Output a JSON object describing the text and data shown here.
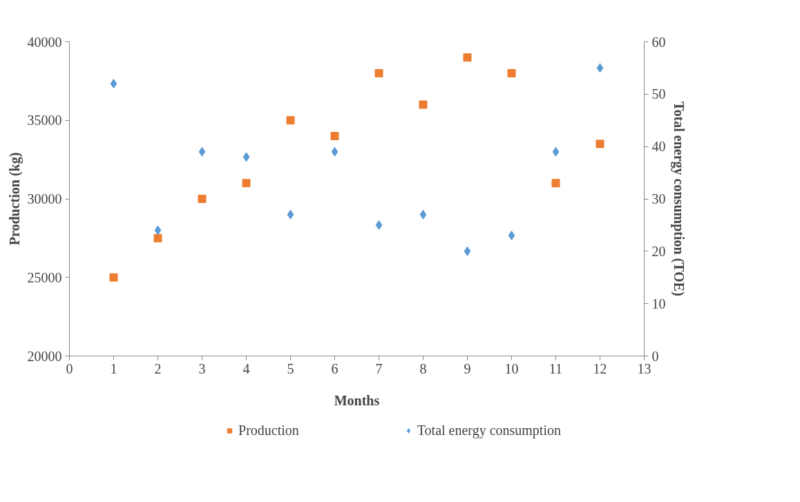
{
  "chart_data": {
    "type": "scatter",
    "xlabel": "Months",
    "ylabel": "Production (kg)",
    "y2label": "Total energy consumption (TOE)",
    "x": [
      1,
      2,
      3,
      4,
      5,
      6,
      7,
      8,
      9,
      10,
      11,
      12
    ],
    "xlim": [
      0,
      13
    ],
    "xticks": [
      0,
      1,
      2,
      3,
      4,
      5,
      6,
      7,
      8,
      9,
      10,
      11,
      12,
      13
    ],
    "ylim": [
      20000,
      40000
    ],
    "yticks": [
      20000,
      25000,
      30000,
      35000,
      40000
    ],
    "y2lim": [
      0,
      60
    ],
    "y2ticks": [
      0,
      10,
      20,
      30,
      40,
      50,
      60
    ],
    "grid": false,
    "legend": "bottom",
    "series": [
      {
        "name": "Production",
        "color": "#ed7d31",
        "marker": "square",
        "values": [
          25000,
          27500,
          30000,
          31000,
          35000,
          34000,
          38000,
          36000,
          39000,
          38000,
          31000,
          33500
        ]
      },
      {
        "name": "Total energy consumption",
        "color": "#5b9bd5",
        "marker": "diamond",
        "axis": "y2",
        "values": [
          52,
          24,
          39,
          38,
          27,
          39,
          25,
          27,
          20,
          23,
          39,
          55
        ]
      }
    ]
  }
}
